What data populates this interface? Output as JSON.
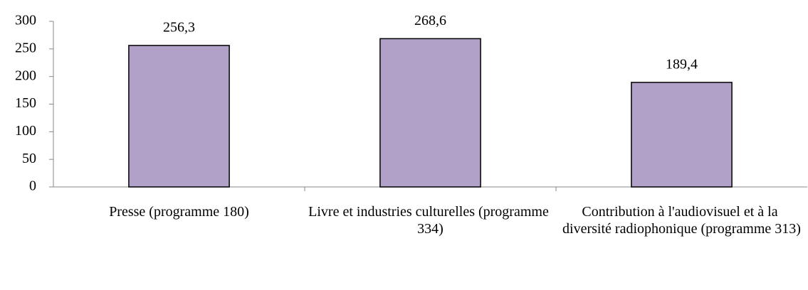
{
  "chart_data": {
    "type": "bar",
    "categories": [
      "Presse (programme 180)",
      "Livre et industries culturelles (programme 334)",
      "Contribution à l'audiovisuel et à la diversité radiophonique (programme 313)"
    ],
    "values": [
      256.3,
      268.6,
      189.4
    ],
    "value_labels": [
      "256,3",
      "268,6",
      "189,4"
    ],
    "color": "#b1a0c7",
    "ylim": [
      0,
      300
    ],
    "yticks": [
      0,
      50,
      100,
      150,
      200,
      250,
      300
    ],
    "grid": false
  }
}
